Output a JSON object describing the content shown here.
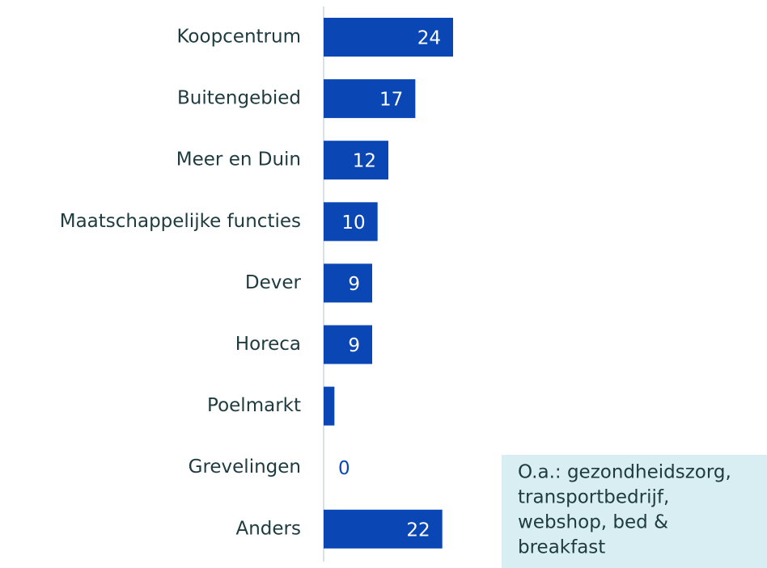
{
  "chart_data": {
    "type": "bar",
    "orientation": "horizontal",
    "categories": [
      "Koopcentrum",
      "Buitengebied",
      "Meer en Duin",
      "Maatschappelijke functies",
      "Dever",
      "Horeca",
      "Poelmarkt",
      "Grevelingen",
      "Anders"
    ],
    "values": [
      24,
      17,
      12,
      10,
      9,
      9,
      2,
      0,
      22
    ],
    "value_labels": [
      "24",
      "17",
      "12",
      "10",
      "9",
      "9",
      null,
      "0",
      "22"
    ],
    "color": "#0a47b4",
    "annotation": [
      "O.a.: gezondheidszorg,",
      "transportbedrijf,",
      "webshop, bed &",
      "breakfast"
    ]
  }
}
